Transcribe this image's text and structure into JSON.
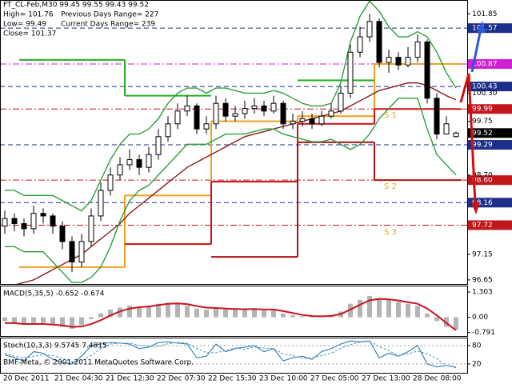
{
  "chart_data": [
    {
      "type": "candlestick",
      "title": "FT_CL-Feb,M30  99.45 99.55 99.43 99.52",
      "info": [
        "High= 101.76",
        "Previous Days Range= 227",
        "Low= 99.49",
        "Current Days Range= 239",
        "Close= 101.37"
      ],
      "x_labels": [
        "20 Dec 2011",
        "21 Dec 04:30",
        "21 Dec 12:30",
        "22 Dec 07:30",
        "22 Dec 15:30",
        "23 Dec 10:00",
        "27 Dec 05:00",
        "27 Dec 13:00",
        "28 Dec 08:00"
      ],
      "color": "#000000",
      "candles": [
        [
          97.7,
          98.0,
          97.55,
          97.85
        ],
        [
          97.85,
          97.95,
          97.6,
          97.75
        ],
        [
          97.75,
          97.85,
          97.5,
          97.65
        ],
        [
          97.65,
          98.1,
          97.55,
          97.95
        ],
        [
          97.95,
          98.05,
          97.75,
          97.9
        ],
        [
          97.9,
          97.95,
          97.55,
          97.7
        ],
        [
          97.7,
          97.8,
          97.25,
          97.4
        ],
        [
          97.4,
          97.5,
          96.8,
          97.0
        ],
        [
          97.0,
          97.55,
          96.9,
          97.4
        ],
        [
          97.4,
          98.05,
          97.3,
          97.9
        ],
        [
          97.9,
          98.55,
          97.8,
          98.4
        ],
        [
          98.4,
          98.85,
          98.3,
          98.7
        ],
        [
          98.7,
          99.05,
          98.6,
          98.9
        ],
        [
          98.9,
          99.2,
          98.8,
          99.0
        ],
        [
          99.0,
          99.1,
          98.7,
          98.85
        ],
        [
          98.85,
          99.25,
          98.75,
          99.1
        ],
        [
          99.1,
          99.6,
          99.0,
          99.45
        ],
        [
          99.45,
          99.85,
          99.35,
          99.7
        ],
        [
          99.7,
          100.1,
          99.6,
          99.95
        ],
        [
          99.95,
          100.25,
          99.85,
          100.05
        ],
        [
          100.05,
          100.1,
          99.5,
          99.6
        ],
        [
          99.6,
          99.85,
          99.5,
          99.7
        ],
        [
          99.7,
          100.25,
          99.6,
          100.1
        ],
        [
          100.1,
          100.2,
          99.75,
          99.85
        ],
        [
          99.85,
          100.05,
          99.75,
          99.9
        ],
        [
          99.9,
          100.15,
          99.8,
          100.0
        ],
        [
          100.0,
          100.2,
          99.9,
          100.05
        ],
        [
          100.05,
          100.15,
          99.85,
          99.95
        ],
        [
          99.95,
          100.25,
          99.9,
          100.1
        ],
        [
          100.1,
          100.15,
          99.6,
          99.7
        ],
        [
          99.7,
          99.9,
          99.6,
          99.75
        ],
        [
          99.75,
          99.95,
          99.65,
          99.8
        ],
        [
          99.8,
          99.9,
          99.6,
          99.7
        ],
        [
          99.7,
          99.95,
          99.65,
          99.85
        ],
        [
          99.85,
          100.1,
          99.8,
          99.95
        ],
        [
          99.95,
          100.45,
          99.9,
          100.3
        ],
        [
          100.3,
          101.25,
          100.2,
          101.1
        ],
        [
          101.1,
          101.6,
          101.0,
          101.4
        ],
        [
          101.4,
          101.85,
          101.3,
          101.7
        ],
        [
          101.7,
          101.76,
          100.8,
          100.9
        ],
        [
          100.9,
          101.15,
          100.7,
          101.0
        ],
        [
          101.0,
          101.1,
          100.75,
          100.85
        ],
        [
          100.85,
          101.2,
          100.8,
          101.0
        ],
        [
          101.0,
          101.45,
          100.9,
          101.3
        ],
        [
          101.3,
          101.35,
          100.1,
          100.2
        ],
        [
          100.2,
          100.3,
          99.4,
          99.5
        ],
        [
          99.5,
          99.85,
          99.49,
          99.7
        ],
        [
          99.45,
          99.55,
          99.43,
          99.52
        ]
      ],
      "series": [
        {
          "color": "#8b1a1a",
          "values": [
            96.5,
            96.55,
            96.6,
            96.65,
            96.75,
            96.85,
            96.95,
            97.05,
            97.15,
            97.3,
            97.45,
            97.6,
            97.75,
            97.95,
            98.1,
            98.25,
            98.4,
            98.55,
            98.7,
            98.85,
            98.95,
            99.05,
            99.15,
            99.25,
            99.35,
            99.45,
            99.5,
            99.55,
            99.6,
            99.65,
            99.7,
            99.75,
            99.8,
            99.85,
            99.9,
            99.95,
            100.05,
            100.15,
            100.25,
            100.35,
            100.4,
            100.45,
            100.5,
            100.5,
            100.45,
            100.35,
            100.25,
            100.17
          ]
        },
        {
          "color": "#2e9e3a",
          "values": [
            98.4,
            98.4,
            98.3,
            98.3,
            98.3,
            98.3,
            98.2,
            98.1,
            98.0,
            98.2,
            98.6,
            99.0,
            99.3,
            99.5,
            99.5,
            99.6,
            99.8,
            100.1,
            100.3,
            100.4,
            100.4,
            100.3,
            100.4,
            100.4,
            100.35,
            100.3,
            100.3,
            100.3,
            100.35,
            100.3,
            100.2,
            100.1,
            100.05,
            100.05,
            100.1,
            100.5,
            101.3,
            101.8,
            102.1,
            101.9,
            101.6,
            101.4,
            101.4,
            101.5,
            101.4,
            101.1,
            100.7,
            100.4
          ]
        },
        {
          "color": "#2e9e3a",
          "values": [
            97.3,
            97.3,
            97.2,
            97.2,
            97.2,
            97.0,
            96.8,
            96.6,
            96.6,
            96.7,
            96.9,
            97.3,
            97.8,
            98.2,
            98.4,
            98.5,
            98.7,
            98.9,
            99.1,
            99.3,
            99.3,
            99.3,
            99.4,
            99.5,
            99.5,
            99.5,
            99.55,
            99.6,
            99.6,
            99.5,
            99.45,
            99.4,
            99.35,
            99.35,
            99.4,
            99.3,
            99.2,
            99.3,
            99.5,
            99.8,
            100.0,
            100.2,
            100.2,
            100.2,
            99.6,
            99.1,
            98.9,
            98.7
          ]
        }
      ],
      "steps": [
        {
          "color": "#f0a020",
          "values": [
            null,
            null,
            96.9,
            96.9,
            96.9,
            96.9,
            96.9,
            96.9,
            96.9,
            96.9,
            96.9,
            96.9,
            96.9,
            98.3,
            98.3,
            98.3,
            98.3,
            98.3,
            98.3,
            98.3,
            98.3,
            98.3,
            99.75,
            99.75,
            99.75,
            99.75,
            99.75,
            99.75,
            99.75,
            99.75,
            99.75,
            99.85,
            99.85,
            99.85,
            99.85,
            99.85,
            99.85,
            99.85,
            99.85,
            100.87,
            100.87,
            100.87,
            100.87,
            100.87,
            100.87,
            100.87,
            100.87,
            100.87
          ]
        },
        {
          "color": "#d01010",
          "values": [
            null,
            null,
            null,
            null,
            null,
            null,
            null,
            null,
            null,
            null,
            null,
            null,
            null,
            97.35,
            97.35,
            97.35,
            97.35,
            97.35,
            97.35,
            97.35,
            97.35,
            97.35,
            98.57,
            98.57,
            98.57,
            98.57,
            98.57,
            98.57,
            98.57,
            98.57,
            98.57,
            99.7,
            99.7,
            99.7,
            99.7,
            99.7,
            99.7,
            99.7,
            99.7,
            99.99,
            99.99,
            99.99,
            99.99,
            99.99,
            99.99,
            99.99,
            99.99,
            99.99
          ]
        },
        {
          "color": "#b01010",
          "values": [
            null,
            null,
            null,
            null,
            null,
            null,
            null,
            null,
            null,
            null,
            null,
            null,
            null,
            null,
            null,
            null,
            null,
            null,
            null,
            null,
            null,
            null,
            97.1,
            97.1,
            97.1,
            97.1,
            97.1,
            97.1,
            97.1,
            97.1,
            97.1,
            99.34,
            99.34,
            99.34,
            99.34,
            99.34,
            99.34,
            99.34,
            99.34,
            98.6,
            98.6,
            98.6,
            98.6,
            98.6,
            98.6,
            98.6,
            98.6,
            98.6
          ]
        },
        {
          "color": "#22b022",
          "values": [
            null,
            null,
            100.95,
            100.95,
            100.95,
            100.95,
            100.95,
            100.95,
            100.95,
            100.95,
            100.95,
            100.95,
            100.95,
            100.25,
            100.25,
            100.25,
            100.25,
            100.25,
            100.25,
            100.25,
            100.25,
            100.25,
            null,
            null,
            null,
            null,
            null,
            null,
            null,
            null,
            null,
            100.55,
            100.55,
            100.55,
            100.55,
            100.55,
            100.55,
            100.55,
            100.55,
            null,
            null,
            null,
            null,
            null,
            null,
            null,
            null,
            null
          ]
        }
      ],
      "levels": [
        {
          "value": 101.57,
          "color": "#1c2f8a"
        },
        {
          "value": 100.87,
          "color": "#d21fd2"
        },
        {
          "value": 100.43,
          "color": "#1c2f8a"
        },
        {
          "value": 99.99,
          "color": "#c0171b"
        },
        {
          "value": 99.29,
          "color": "#1c2f8a"
        },
        {
          "value": 98.6,
          "label": "98.60",
          "color": "#c0171b"
        },
        {
          "value": 98.16,
          "color": "#1c2f8a"
        },
        {
          "value": 97.72,
          "color": "#c0171b"
        }
      ],
      "last_price": 99.52,
      "annotations": [
        "S 1",
        "S 2",
        "S 3"
      ],
      "ylim": [
        96.57,
        102.12
      ],
      "yticks": [
        101.85,
        {
          "value": 100.3,
          "label": "100.30"
        },
        99.75,
        {
          "value": 98.7,
          "label": "98.70"
        },
        97.15,
        96.65
      ]
    },
    {
      "type": "macd",
      "title": "MACD(5,35,5) -0.652 -0.674",
      "values": [
        -0.2,
        -0.3,
        -0.4,
        -0.3,
        -0.3,
        -0.4,
        -0.5,
        -0.6,
        -0.4,
        -0.1,
        0.2,
        0.4,
        0.5,
        0.6,
        0.55,
        0.6,
        0.7,
        0.75,
        0.7,
        0.6,
        0.45,
        0.4,
        0.5,
        0.4,
        0.4,
        0.4,
        0.45,
        0.35,
        0.4,
        0.2,
        0.1,
        0.05,
        0.0,
        0.05,
        0.1,
        0.3,
        0.7,
        0.9,
        1.1,
        1.0,
        0.9,
        0.8,
        0.7,
        0.6,
        0.2,
        -0.2,
        -0.5,
        -0.652
      ],
      "color": "#b4b4b4",
      "signal": {
        "color": "#c8141e",
        "values": [
          -0.3,
          -0.3,
          -0.35,
          -0.35,
          -0.35,
          -0.38,
          -0.42,
          -0.5,
          -0.48,
          -0.35,
          -0.15,
          0.1,
          0.3,
          0.45,
          0.52,
          0.56,
          0.63,
          0.7,
          0.72,
          0.68,
          0.58,
          0.5,
          0.48,
          0.45,
          0.43,
          0.42,
          0.43,
          0.4,
          0.4,
          0.32,
          0.22,
          0.12,
          0.06,
          0.05,
          0.07,
          0.17,
          0.4,
          0.65,
          0.88,
          0.95,
          0.93,
          0.87,
          0.78,
          0.7,
          0.45,
          0.1,
          -0.3,
          -0.674
        ]
      },
      "ylim": [
        -0.97,
        1.64
      ],
      "yticks": [
        1.303,
        {
          "value": 0,
          "label": "0.00"
        },
        -0.791
      ]
    },
    {
      "type": "stochastic",
      "title": "Stoch(10,3,3) 9.5745 7.4815",
      "copyright": "BMF-Meta, © 2001-2011 MetaQuotes Software Corp.",
      "series": [
        {
          "color": "#2a7ab0",
          "values": [
            50,
            40,
            30,
            60,
            55,
            35,
            25,
            20,
            45,
            80,
            85,
            90,
            88,
            85,
            70,
            75,
            90,
            92,
            88,
            85,
            40,
            45,
            85,
            60,
            70,
            75,
            80,
            60,
            70,
            30,
            40,
            45,
            35,
            60,
            70,
            85,
            95,
            92,
            95,
            40,
            55,
            45,
            60,
            80,
            20,
            10,
            15,
            9.5745
          ]
        },
        {
          "color": "#5aa0c8",
          "values": [
            55,
            45,
            40,
            45,
            50,
            48,
            38,
            27,
            30,
            48,
            70,
            85,
            88,
            88,
            81,
            77,
            78,
            86,
            90,
            88,
            71,
            57,
            57,
            63,
            72,
            68,
            75,
            72,
            70,
            53,
            47,
            38,
            40,
            47,
            55,
            72,
            83,
            91,
            94,
            76,
            63,
            47,
            53,
            62,
            53,
            37,
            15,
            7.4815
          ]
        }
      ],
      "ylim": [
        -9,
        106
      ],
      "yticks": [
        80,
        20
      ]
    }
  ]
}
